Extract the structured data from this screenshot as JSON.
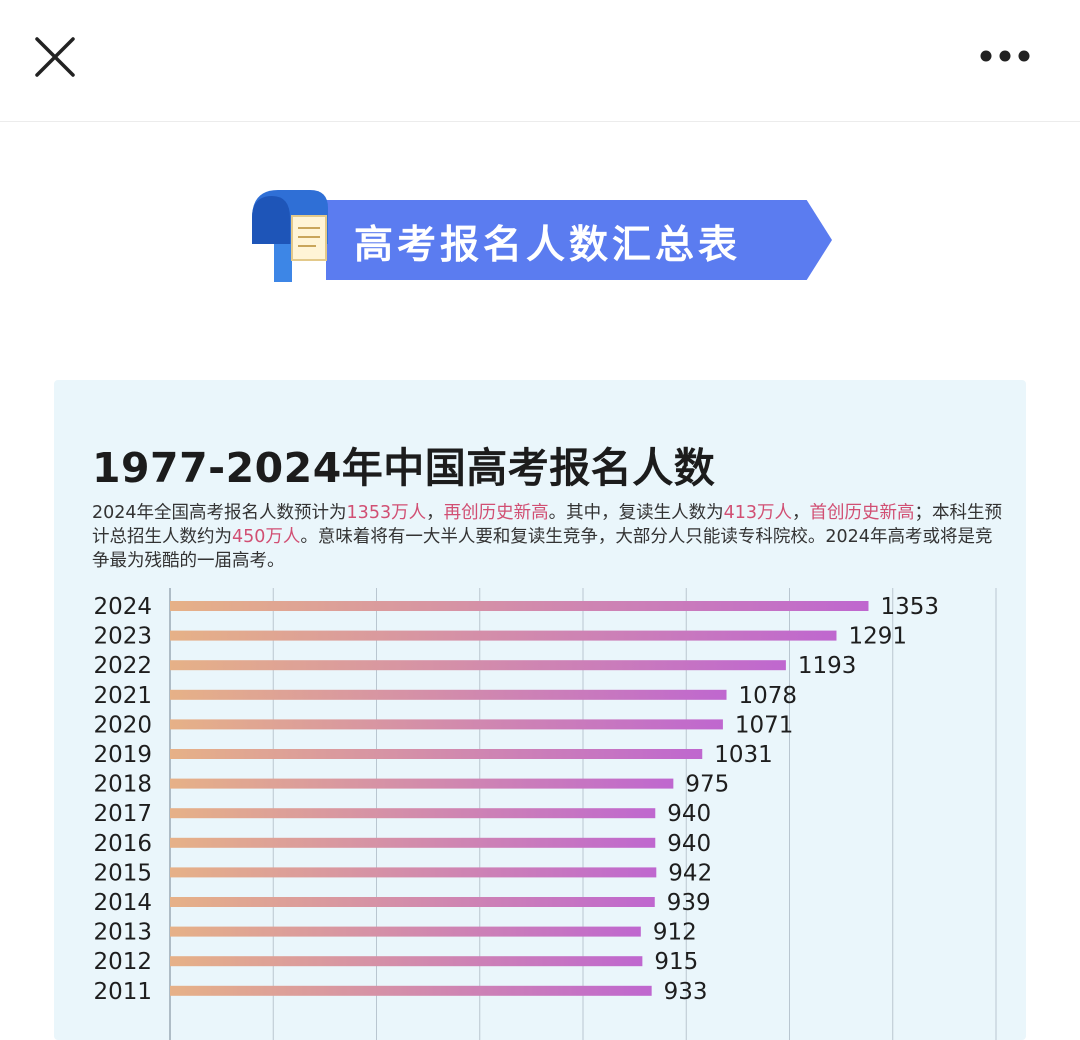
{
  "header": {
    "close_icon": "close-icon",
    "more_icon": "more-horizontal-icon"
  },
  "banner": {
    "title": "高考报名人数汇总表",
    "icon": "mailbox-icon",
    "color": "#5b7cf0"
  },
  "card": {
    "background": "#eaf6fb",
    "subtitle": {
      "p1": "2024年全国高考报名人数预计为",
      "h1": "1353万人",
      "p2": "，",
      "h2": "再创历史新高",
      "p3": "。其中，复读生人数为",
      "h3": "413万人",
      "p4": "，",
      "h4": "首创历史新高",
      "p5": "；本科生预计总招生人数约为",
      "h5": "450万人",
      "p6": "。意味着将有一大半人要和复读生竞争，大部分人只能读专科院校。2024年高考或将是竞争最为残酷的一届高考。"
    },
    "highlight_color": "#d14f73"
  },
  "chart_data": {
    "type": "bar",
    "orientation": "horizontal",
    "title": "1977-2024年中国高考报名人数",
    "categories": [
      "2024",
      "2023",
      "2022",
      "2021",
      "2020",
      "2019",
      "2018",
      "2017",
      "2016",
      "2015",
      "2014",
      "2013",
      "2012",
      "2011"
    ],
    "values": [
      1353,
      1291,
      1193,
      1078,
      1071,
      1031,
      975,
      940,
      940,
      942,
      939,
      912,
      915,
      933
    ],
    "xlim": [
      0,
      1600
    ],
    "grid": true,
    "bar_gradient": [
      "#e6b187",
      "#bf67cf"
    ]
  }
}
